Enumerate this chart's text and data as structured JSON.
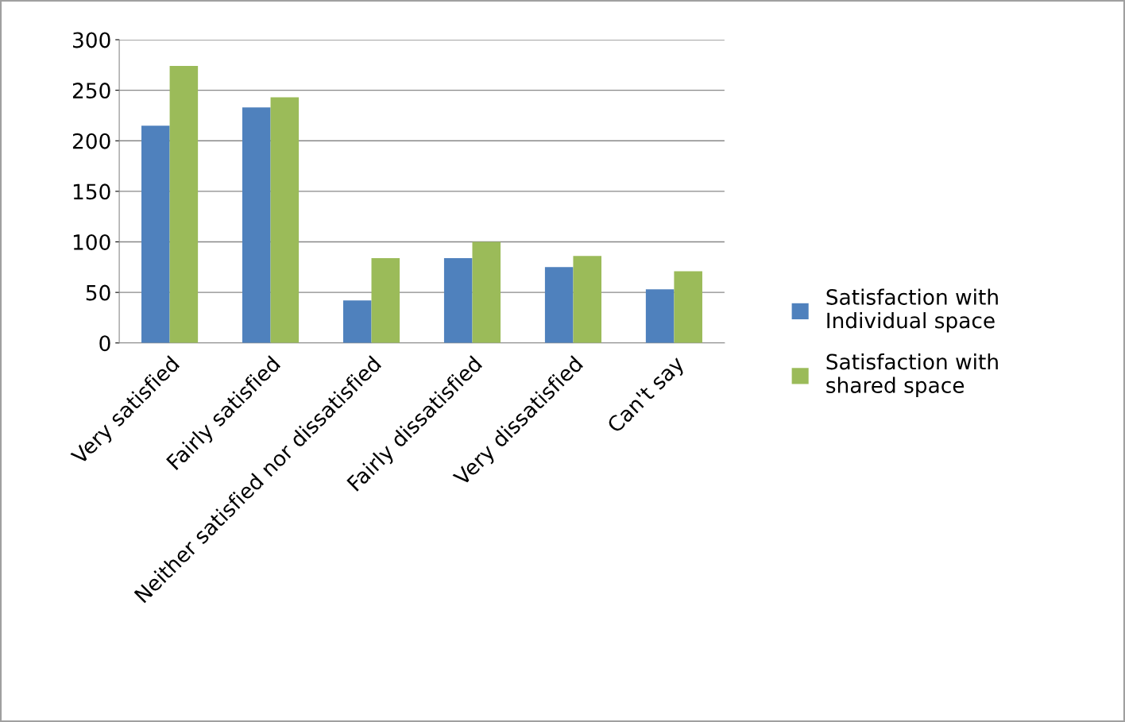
{
  "chart_data": {
    "type": "bar",
    "categories": [
      "Very satisfied",
      "Fairly satisfied",
      "Neither satisfied nor dissatisfied",
      "Fairly dissatisfied",
      "Very dissatisfied",
      "Can't say"
    ],
    "series": [
      {
        "name": "Satisfaction with Individual space",
        "color": "#4f81bd",
        "values": [
          215,
          233,
          42,
          84,
          75,
          53
        ]
      },
      {
        "name": "Satisfaction with shared space",
        "color": "#9bbb59",
        "values": [
          274,
          243,
          84,
          100,
          86,
          71
        ]
      }
    ],
    "ylim": [
      0,
      300
    ],
    "yticks": [
      0,
      50,
      100,
      150,
      200,
      250,
      300
    ],
    "grid": "y",
    "legend": "right"
  }
}
